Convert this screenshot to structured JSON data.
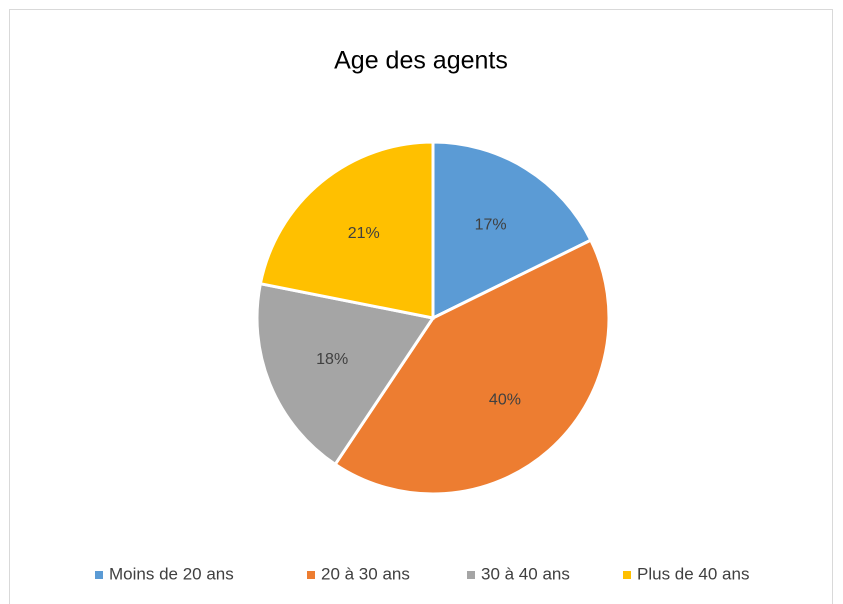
{
  "chart_data": {
    "type": "pie",
    "title": "Age des agents",
    "categories": [
      "Moins de 20 ans",
      "20 à 30 ans",
      "30 à 40 ans",
      "Plus de 40 ans"
    ],
    "values": [
      17,
      40,
      18,
      21
    ],
    "value_labels": [
      "17%",
      "40%",
      "18%",
      "21%"
    ],
    "colors": [
      "#5b9bd5",
      "#ed7d31",
      "#a5a5a5",
      "#ffc000"
    ],
    "legend": "bottom"
  }
}
